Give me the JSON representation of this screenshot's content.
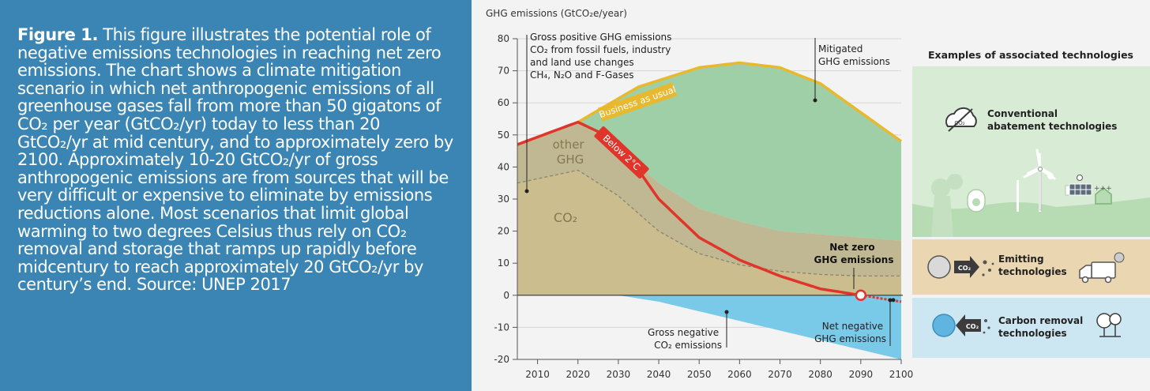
{
  "caption": {
    "label": "Figure 1.",
    "text": " This figure illustrates the potential role of negative emissions technologies in reaching net zero emissions. The chart shows a climate mitigation scenario in which net anthropogenic emissions of all greenhouse gases fall from more than 50 gigatons of CO₂ per year (GtCO₂/yr) today to less than 20 GtCO₂/yr at mid century, and to approximately zero by 2100. Approximately 10-20 GtCO₂/yr of gross anthropogenic emissions are from sources that will be very difficult or expensive to eliminate by emissions reductions alone. Most scenarios that limit global warming to two degrees Celsius thus rely on CO₂ removal and storage that ramps up rapidly before midcentury to reach approximately 20 GtCO₂/yr by century’s end. Source: UNEP 2017"
  },
  "chart_data": {
    "type": "area",
    "title": "",
    "ylabel": "GHG emissions (GtCO₂e/year)",
    "xlabel": "",
    "xlim": [
      2005,
      2100
    ],
    "ylim": [
      -20,
      80
    ],
    "xticks": [
      2010,
      2020,
      2030,
      2040,
      2050,
      2060,
      2070,
      2080,
      2090,
      2100
    ],
    "yticks": [
      80,
      70,
      60,
      50,
      40,
      30,
      20,
      10,
      0,
      -10,
      -20
    ],
    "series": [
      {
        "name": "Business as usual",
        "x": [
          2005,
          2020,
          2035,
          2050,
          2060,
          2070,
          2080,
          2090,
          2100
        ],
        "values": [
          47,
          54,
          65,
          71,
          72.5,
          71,
          66,
          57,
          48
        ]
      },
      {
        "name": "Below 2°C",
        "x": [
          2005,
          2020,
          2030,
          2040,
          2050,
          2060,
          2070,
          2080,
          2090,
          2100
        ],
        "values": [
          47,
          54,
          48,
          30,
          18,
          11,
          6,
          2,
          0,
          -2
        ]
      },
      {
        "name": "Gross positive GHG emissions",
        "x": [
          2005,
          2020,
          2030,
          2040,
          2050,
          2060,
          2070,
          2080,
          2090,
          2100
        ],
        "values": [
          47,
          54,
          46,
          35,
          27,
          23,
          20,
          19,
          18,
          17
        ]
      },
      {
        "name": "CO₂",
        "x": [
          2005,
          2020,
          2030,
          2040,
          2050,
          2060,
          2070,
          2080,
          2090,
          2100
        ],
        "values": [
          35,
          39,
          31,
          20,
          13,
          9.5,
          7.5,
          6.5,
          6,
          6
        ]
      },
      {
        "name": "Gross negative CO₂ emissions",
        "x": [
          2005,
          2030,
          2040,
          2050,
          2060,
          2070,
          2080,
          2090,
          2100
        ],
        "values": [
          0,
          0,
          -2,
          -5,
          -8,
          -11,
          -14,
          -17,
          -20
        ]
      }
    ],
    "labels": {
      "gross_positive": [
        "Gross positive GHG emissions",
        "CO₂ from fossil fuels, industry",
        "and land use changes",
        "CH₄, N₂O and F-Gases"
      ],
      "mitigated": [
        "Mitigated",
        "GHG emissions"
      ],
      "bau": "Business as usual",
      "below2": "Below 2°C",
      "other_ghg": [
        "other",
        "GHG"
      ],
      "co2": "CO₂",
      "net_zero": [
        "Net zero",
        "GHG emissions"
      ],
      "gross_negative": [
        "Gross negative",
        "CO₂ emissions"
      ],
      "net_negative": [
        "Net negative",
        "GHG emissions"
      ]
    }
  },
  "technologies": {
    "title": "Examples of associated technologies",
    "conventional": [
      "Conventional",
      "abatement technologies"
    ],
    "emitting": [
      "Emitting",
      "technologies"
    ],
    "removal": [
      "Carbon removal",
      "technologies"
    ],
    "co2_badge": "CO₂",
    "co2_icon_text": "CO₂",
    "plus_text": "+++"
  },
  "colors": {
    "green_area": "#9fcfa6",
    "tan_area": "#cbbd8e",
    "grey_band": "#b8b598",
    "blue_area": "#79c9e8",
    "bau_line": "#e8b92e",
    "below2_line": "#e0352a",
    "tech_green": "#d7ebd5",
    "tech_tan": "#ead6b0",
    "tech_blue": "#cde7f2"
  }
}
